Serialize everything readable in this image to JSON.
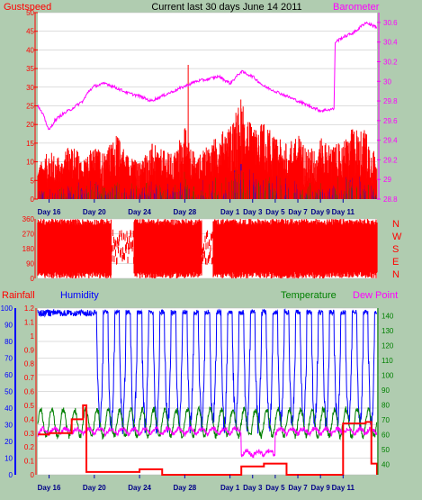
{
  "title": "Current last 30 days June 14 2011",
  "colors": {
    "background": "#b0ccb0",
    "plot_bg": "#ffffff",
    "gust": "#ff0000",
    "wind": "#0000ff",
    "wind2": "#008800",
    "barometer": "#ff00ff",
    "direction": "#ff0000",
    "rainfall": "#ff0000",
    "humidity": "#0000ff",
    "temperature": "#008000",
    "dewpoint": "#ff00ff",
    "grid": "#bbbbbb"
  },
  "chart_data": [
    {
      "type": "area",
      "name": "gust-barometer",
      "left_label": "Gustspeed",
      "right_label": "Barometer",
      "y_left": {
        "ticks": [
          0,
          5,
          10,
          15,
          20,
          25,
          30,
          35,
          40,
          45,
          50
        ],
        "range": [
          0,
          50
        ]
      },
      "y_right": {
        "ticks": [
          "28.8",
          "29",
          "29.2",
          "29.4",
          "29.6",
          "29.8",
          "30",
          "30.2",
          "30.4",
          "30.6"
        ],
        "range": [
          28.8,
          30.7
        ]
      },
      "x_ticks": [
        "Day 16",
        "Day 20",
        "Day 24",
        "Day 28",
        "Day 1",
        "Day 3",
        "Day 5",
        "Day 7",
        "Day 9",
        "Day 11"
      ],
      "days_range": [
        15,
        45
      ],
      "barometer_series": [
        [
          15,
          29.75
        ],
        [
          15.5,
          29.65
        ],
        [
          16,
          29.5
        ],
        [
          16.5,
          29.6
        ],
        [
          17,
          29.65
        ],
        [
          18,
          29.72
        ],
        [
          19,
          29.8
        ],
        [
          19.5,
          29.9
        ],
        [
          20,
          29.95
        ],
        [
          21,
          29.98
        ],
        [
          22,
          29.93
        ],
        [
          23,
          29.88
        ],
        [
          24,
          29.85
        ],
        [
          25,
          29.8
        ],
        [
          26,
          29.85
        ],
        [
          27,
          29.9
        ],
        [
          28,
          29.95
        ],
        [
          29,
          30.0
        ],
        [
          30,
          30.02
        ],
        [
          31,
          30.05
        ],
        [
          32,
          29.98
        ],
        [
          33,
          30.1
        ],
        [
          34,
          30.05
        ],
        [
          35,
          29.95
        ],
        [
          36,
          29.9
        ],
        [
          37,
          29.85
        ],
        [
          38,
          29.8
        ],
        [
          39,
          29.75
        ],
        [
          40,
          29.7
        ],
        [
          41.2,
          29.72
        ],
        [
          41.3,
          30.4
        ],
        [
          42,
          30.45
        ],
        [
          43,
          30.5
        ],
        [
          44,
          30.6
        ],
        [
          45,
          30.55
        ]
      ],
      "gust_envelope": [
        [
          15,
          8
        ],
        [
          16,
          12
        ],
        [
          17,
          10
        ],
        [
          18,
          14
        ],
        [
          19,
          10
        ],
        [
          20,
          13
        ],
        [
          21,
          12
        ],
        [
          22,
          16
        ],
        [
          23,
          11
        ],
        [
          24,
          9
        ],
        [
          25,
          14
        ],
        [
          26,
          12
        ],
        [
          27,
          11
        ],
        [
          28,
          18
        ],
        [
          29,
          10
        ],
        [
          30,
          13
        ],
        [
          31,
          16
        ],
        [
          32,
          18
        ],
        [
          33,
          25
        ],
        [
          34,
          17
        ],
        [
          35,
          19
        ],
        [
          36,
          15
        ],
        [
          37,
          14
        ],
        [
          38,
          16
        ],
        [
          39,
          12
        ],
        [
          40,
          15
        ],
        [
          41,
          13
        ],
        [
          42,
          14
        ],
        [
          43,
          18
        ],
        [
          44,
          17
        ],
        [
          45,
          10
        ]
      ]
    },
    {
      "type": "scatter",
      "name": "wind-direction",
      "right_labels": [
        "N",
        "W",
        "S",
        "E",
        "N"
      ],
      "y_left": {
        "ticks": [
          0,
          90,
          180,
          270,
          360
        ],
        "range": [
          0,
          360
        ]
      },
      "days_range": [
        15,
        45
      ],
      "gaps": [
        [
          21.5,
          23.5
        ],
        [
          29.5,
          30.5
        ]
      ]
    },
    {
      "type": "line",
      "name": "rain-humidity-temp-dew",
      "labels": {
        "rainfall": "Rainfall",
        "humidity": "Humidity",
        "temperature": "Temperature",
        "dewpoint": "Dew Point"
      },
      "y_left_outer": {
        "ticks": [
          "0",
          "10",
          "20",
          "30",
          "40",
          "50",
          "60",
          "70",
          "80",
          "90",
          "100"
        ],
        "range": [
          0,
          100
        ]
      },
      "y_left_inner": {
        "ticks": [
          "0",
          "0.1",
          "0.2",
          "0.3",
          "0.4",
          "0.5",
          "0.6",
          "0.7",
          "0.8",
          "0.9",
          "1",
          "1.1",
          "1.2"
        ],
        "range": [
          0,
          1.2
        ]
      },
      "y_right": {
        "ticks": [
          "40",
          "50",
          "60",
          "70",
          "80",
          "90",
          "100",
          "110",
          "120",
          "130",
          "140"
        ],
        "range": [
          33,
          145
        ]
      },
      "x_ticks": [
        "Day 16",
        "Day 20",
        "Day 24",
        "Day 28",
        "Day 1",
        "Day 3",
        "Day 5",
        "Day 7",
        "Day 9",
        "Day 11"
      ],
      "days_range": [
        15,
        45
      ],
      "rainfall_series": [
        [
          15,
          0.29
        ],
        [
          16,
          0.3
        ],
        [
          17,
          0.3
        ],
        [
          18,
          0.4
        ],
        [
          19,
          0.5
        ],
        [
          19.3,
          0.02
        ],
        [
          24,
          0.04
        ],
        [
          25,
          0.04
        ],
        [
          26,
          0.0
        ],
        [
          30,
          0.0
        ],
        [
          33,
          0.06
        ],
        [
          35,
          0.08
        ],
        [
          37,
          0.0
        ],
        [
          42,
          0.37
        ],
        [
          44,
          0.38
        ],
        [
          44.5,
          0.08
        ],
        [
          45,
          0.0
        ]
      ],
      "temperature_daily": {
        "base": 68,
        "amplitude": 9
      },
      "dewpoint_daily": {
        "base": 60,
        "amplitude": 4
      },
      "humidity_daily": {
        "high": 99,
        "low": 30
      }
    }
  ]
}
